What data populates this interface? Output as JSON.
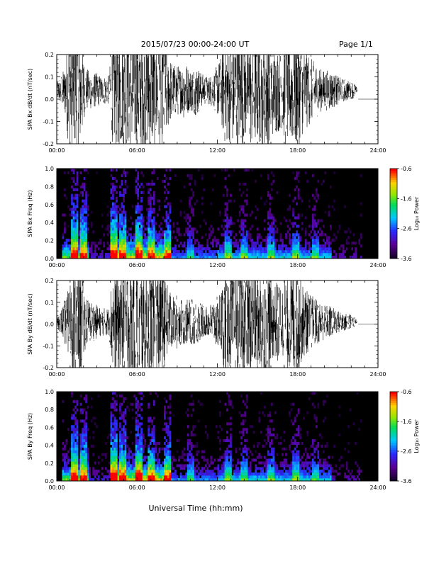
{
  "header": {
    "date_range": "2015/07/23  00:00-24:00 UT",
    "page": "Page 1/1"
  },
  "footer": {
    "xlabel": "Universal Time (hh:mm)"
  },
  "time_ticks": [
    "00:00",
    "06:00",
    "12:00",
    "18:00",
    "24:00"
  ],
  "colors": {
    "background": "#ffffff",
    "axis": "#000000",
    "panel_fill": "#000000"
  },
  "chart_data": [
    {
      "type": "line",
      "title": "",
      "ylabel": "SPA Bx dB/dt (nT/sec)",
      "xlabel": "",
      "xlim": [
        0,
        24
      ],
      "ylim": [
        -0.2,
        0.2
      ],
      "yticks": [
        "-0.2",
        "-0.1",
        "0.0",
        "0.1",
        "0.2"
      ],
      "ytick_values": [
        -0.2,
        -0.1,
        0.0,
        0.1,
        0.2
      ],
      "series": [
        {
          "x": [
            0,
            0.3,
            0.6,
            0.9,
            1.2,
            1.5,
            1.8,
            2.1,
            2.4,
            2.7,
            3.0,
            3.3,
            3.6,
            3.9,
            4.2,
            4.5,
            4.8,
            5.1,
            5.4,
            5.7,
            6.0,
            6.3,
            6.6,
            6.9,
            7.2,
            7.5,
            7.8,
            8.1,
            8.4,
            8.7,
            9.0,
            9.3,
            9.6,
            9.9,
            10.2,
            10.5,
            10.8,
            11.1,
            11.4,
            11.7,
            12.0,
            12.3,
            12.6,
            12.9,
            13.2,
            13.5,
            13.8,
            14.1,
            14.4,
            14.7,
            15.0,
            15.3,
            15.6,
            15.9,
            16.2,
            16.5,
            16.8,
            17.1,
            17.4,
            17.7,
            18.0,
            18.3,
            18.6,
            18.9,
            19.2,
            19.5,
            19.8,
            20.1,
            20.4,
            20.7,
            21.0,
            21.3,
            21.6,
            21.9,
            22.2,
            22.5,
            22.8,
            23.1,
            23.4,
            23.7,
            24.0
          ],
          "amplitude": [
            0.03,
            0.05,
            0.08,
            0.2,
            0.2,
            0.2,
            0.2,
            0.08,
            0.07,
            0.06,
            0.06,
            0.05,
            0.05,
            0.05,
            0.2,
            0.2,
            0.2,
            0.2,
            0.2,
            0.2,
            0.2,
            0.2,
            0.2,
            0.2,
            0.2,
            0.2,
            0.2,
            0.2,
            0.12,
            0.09,
            0.09,
            0.08,
            0.11,
            0.07,
            0.08,
            0.09,
            0.06,
            0.05,
            0.05,
            0.06,
            0.09,
            0.12,
            0.2,
            0.18,
            0.2,
            0.2,
            0.2,
            0.17,
            0.2,
            0.2,
            0.18,
            0.2,
            0.2,
            0.2,
            0.15,
            0.15,
            0.13,
            0.2,
            0.18,
            0.2,
            0.2,
            0.16,
            0.14,
            0.12,
            0.1,
            0.09,
            0.07,
            0.07,
            0.07,
            0.06,
            0.05,
            0.04,
            0.04,
            0.03,
            0.03,
            0.0,
            0.0,
            0.0,
            0.0,
            0.0,
            0.0
          ],
          "offset": 0.04
        }
      ]
    },
    {
      "type": "heatmap",
      "title": "",
      "ylabel": "SPA Bx Freq (Hz)",
      "xlabel": "",
      "xlim": [
        0,
        24
      ],
      "ylim": [
        0,
        1.0
      ],
      "yticks": [
        "0.0",
        "0.2",
        "0.4",
        "0.6",
        "0.8",
        "1.0"
      ],
      "ytick_values": [
        0,
        0.2,
        0.4,
        0.6,
        0.8,
        1.0
      ],
      "colorbar": {
        "label": "Log₁₀ Power",
        "ticks": [
          "-0.6",
          "-1.6",
          "-2.6",
          "-3.6"
        ],
        "tick_values": [
          -0.6,
          -1.6,
          -2.6,
          -3.6
        ],
        "range": [
          -3.6,
          -0.6
        ]
      },
      "active_bands": [
        {
          "hours": [
            1.2,
            1.5
          ],
          "level": 1.0
        },
        {
          "hours": [
            1.8,
            2.1
          ],
          "level": 0.9
        },
        {
          "hours": [
            4.1,
            4.4
          ],
          "level": 1.0
        },
        {
          "hours": [
            4.8,
            5.1
          ],
          "level": 0.8
        },
        {
          "hours": [
            6.0,
            6.3
          ],
          "level": 0.9
        },
        {
          "hours": [
            6.9,
            7.2
          ],
          "level": 0.7
        },
        {
          "hours": [
            8.1,
            8.4
          ],
          "level": 0.6
        },
        {
          "hours": [
            9.9,
            10.2
          ],
          "level": 0.4
        },
        {
          "hours": [
            12.6,
            12.9
          ],
          "level": 0.5
        },
        {
          "hours": [
            13.8,
            14.1
          ],
          "level": 0.45
        },
        {
          "hours": [
            15.9,
            16.2
          ],
          "level": 0.45
        },
        {
          "hours": [
            17.7,
            18.0
          ],
          "level": 0.5
        },
        {
          "hours": [
            19.2,
            19.5
          ],
          "level": 0.35
        }
      ]
    },
    {
      "type": "line",
      "title": "",
      "ylabel": "SPA By dB/dt (nT/sec)",
      "xlabel": "",
      "xlim": [
        0,
        24
      ],
      "ylim": [
        -0.2,
        0.2
      ],
      "yticks": [
        "-0.2",
        "-0.1",
        "0.0",
        "0.1",
        "0.2"
      ],
      "ytick_values": [
        -0.2,
        -0.1,
        0.0,
        0.1,
        0.2
      ],
      "series": [
        {
          "x": [
            0,
            0.3,
            0.6,
            0.9,
            1.2,
            1.5,
            1.8,
            2.1,
            2.4,
            2.7,
            3.0,
            3.3,
            3.6,
            3.9,
            4.2,
            4.5,
            4.8,
            5.1,
            5.4,
            5.7,
            6.0,
            6.3,
            6.6,
            6.9,
            7.2,
            7.5,
            7.8,
            8.1,
            8.4,
            8.7,
            9.0,
            9.3,
            9.6,
            9.9,
            10.2,
            10.5,
            10.8,
            11.1,
            11.4,
            11.7,
            12.0,
            12.3,
            12.6,
            12.9,
            13.2,
            13.5,
            13.8,
            14.1,
            14.4,
            14.7,
            15.0,
            15.3,
            15.6,
            15.9,
            16.2,
            16.5,
            16.8,
            17.1,
            17.4,
            17.7,
            18.0,
            18.3,
            18.6,
            18.9,
            19.2,
            19.5,
            19.8,
            20.1,
            20.4,
            20.7,
            21.0,
            21.3,
            21.6,
            21.9,
            22.2,
            22.5,
            22.8,
            23.1,
            23.4,
            23.7,
            24.0
          ],
          "amplitude": [
            0.02,
            0.04,
            0.08,
            0.12,
            0.2,
            0.2,
            0.2,
            0.1,
            0.08,
            0.07,
            0.06,
            0.05,
            0.05,
            0.05,
            0.2,
            0.2,
            0.2,
            0.2,
            0.2,
            0.2,
            0.2,
            0.2,
            0.2,
            0.2,
            0.2,
            0.2,
            0.2,
            0.15,
            0.12,
            0.09,
            0.1,
            0.08,
            0.08,
            0.08,
            0.08,
            0.08,
            0.07,
            0.05,
            0.06,
            0.08,
            0.09,
            0.12,
            0.2,
            0.16,
            0.2,
            0.2,
            0.2,
            0.18,
            0.2,
            0.2,
            0.16,
            0.2,
            0.2,
            0.2,
            0.12,
            0.15,
            0.12,
            0.2,
            0.16,
            0.2,
            0.2,
            0.14,
            0.12,
            0.1,
            0.09,
            0.08,
            0.07,
            0.06,
            0.06,
            0.05,
            0.04,
            0.04,
            0.03,
            0.03,
            0.02,
            0.0,
            0.0,
            0.0,
            0.0,
            0.0,
            0.0
          ],
          "offset": 0.01
        }
      ]
    },
    {
      "type": "heatmap",
      "title": "",
      "ylabel": "SPA By Freq (Hz)",
      "xlabel": "",
      "xlim": [
        0,
        24
      ],
      "ylim": [
        0,
        1.0
      ],
      "yticks": [
        "0.0",
        "0.2",
        "0.4",
        "0.6",
        "0.8",
        "1.0"
      ],
      "ytick_values": [
        0,
        0.2,
        0.4,
        0.6,
        0.8,
        1.0
      ],
      "colorbar": {
        "label": "Log₁₀ Power",
        "ticks": [
          "-0.6",
          "-1.6",
          "-2.6",
          "-3.6"
        ],
        "tick_values": [
          -0.6,
          -1.6,
          -2.6,
          -3.6
        ],
        "range": [
          -3.6,
          -0.6
        ]
      },
      "active_bands": [
        {
          "hours": [
            1.2,
            1.5
          ],
          "level": 1.0
        },
        {
          "hours": [
            1.8,
            2.1
          ],
          "level": 0.9
        },
        {
          "hours": [
            4.1,
            4.4
          ],
          "level": 1.0
        },
        {
          "hours": [
            4.8,
            5.1
          ],
          "level": 0.85
        },
        {
          "hours": [
            6.0,
            6.3
          ],
          "level": 0.9
        },
        {
          "hours": [
            6.9,
            7.2
          ],
          "level": 0.7
        },
        {
          "hours": [
            8.1,
            8.4
          ],
          "level": 0.65
        },
        {
          "hours": [
            9.9,
            10.2
          ],
          "level": 0.45
        },
        {
          "hours": [
            12.6,
            12.9
          ],
          "level": 0.5
        },
        {
          "hours": [
            13.8,
            14.1
          ],
          "level": 0.45
        },
        {
          "hours": [
            15.9,
            16.2
          ],
          "level": 0.45
        },
        {
          "hours": [
            17.7,
            18.0
          ],
          "level": 0.5
        },
        {
          "hours": [
            19.2,
            19.5
          ],
          "level": 0.35
        }
      ]
    }
  ]
}
